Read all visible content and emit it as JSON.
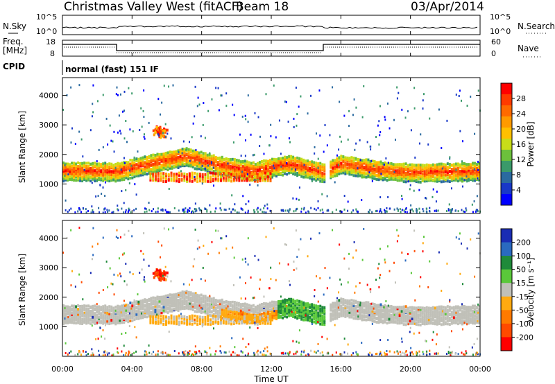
{
  "header": {
    "title": "Christmas Valley West (fitACF)",
    "beam": "Beam 18",
    "date": "03/Apr/2014"
  },
  "panels": {
    "nsky": {
      "left_label": "N.Sky",
      "right_label": "N.Search",
      "ticks_left": [
        "10^5",
        "10^0"
      ],
      "ticks_right": [
        "10^5",
        "10^0"
      ]
    },
    "freq": {
      "left_label_1": "Freq.",
      "left_label_2": "[MHz]",
      "right_label": "Nave",
      "ticks_left": [
        "18",
        "8"
      ],
      "ticks_right": [
        "60",
        "0"
      ]
    },
    "cpid": {
      "label": "CPID",
      "text": "normal (fast) 151 IF"
    }
  },
  "colorbars": {
    "power": {
      "label": "Power [dB]",
      "ticks": [
        "28",
        "24",
        "20",
        "16",
        "12",
        "8",
        "4"
      ],
      "colors": [
        "#ff0000",
        "#ff3a00",
        "#ff6a00",
        "#ff9a00",
        "#ffc000",
        "#c8dc18",
        "#6cc03c",
        "#3a9a6a",
        "#2a6aa0",
        "#1838c8",
        "#0000ff"
      ]
    },
    "velocity": {
      "label": "Velocity [m s⁻¹]",
      "ticks": [
        "200",
        "100",
        "50",
        "15",
        "-15",
        "-50",
        "-100",
        "-200"
      ],
      "colors": [
        "#1a2db4",
        "#2a6ac0",
        "#1f8a3a",
        "#5ac83a",
        "#c0c0b8",
        "#ffaa10",
        "#ff7a00",
        "#ff4a00",
        "#ff0000"
      ]
    }
  },
  "chart_data": [
    {
      "type": "heatmap",
      "name": "power",
      "ylabel": "Slant Range [km]",
      "ylim": [
        0,
        4600
      ],
      "yticks": [
        1000,
        2000,
        3000,
        4000
      ],
      "xlim": [
        "00:00",
        "24:00"
      ],
      "colorbar_label": "Power [dB]",
      "trace_ranges": [
        {
          "time_h": 0,
          "range_km": 1450
        },
        {
          "time_h": 2,
          "range_km": 1450
        },
        {
          "time_h": 3,
          "range_km": 1420
        },
        {
          "time_h": 5,
          "range_km": 1700
        },
        {
          "time_h": 7,
          "range_km": 1950
        },
        {
          "time_h": 9,
          "range_km": 1650
        },
        {
          "time_h": 11,
          "range_km": 1450
        },
        {
          "time_h": 13,
          "range_km": 1700
        },
        {
          "time_h": 15,
          "range_km": 1400
        },
        {
          "time_h": 16,
          "range_km": 1700
        },
        {
          "time_h": 18,
          "range_km": 1500
        },
        {
          "time_h": 20,
          "range_km": 1400
        },
        {
          "time_h": 24,
          "range_km": 1450
        }
      ]
    },
    {
      "type": "heatmap",
      "name": "velocity",
      "ylabel": "Slant Range [km]",
      "xlabel": "Time UT",
      "ylim": [
        0,
        4600
      ],
      "yticks": [
        1000,
        2000,
        3000,
        4000
      ],
      "xticks": [
        "00:00",
        "04:00",
        "08:00",
        "12:00",
        "16:00",
        "20:00",
        "00:00"
      ],
      "colorbar_label": "Velocity [m s⁻¹]"
    }
  ],
  "axes": {
    "ylabel": "Slant Range [km]",
    "xlabel": "Time UT",
    "yticks": [
      "1000",
      "2000",
      "3000",
      "4000"
    ],
    "xticks": [
      "00:00",
      "04:00",
      "08:00",
      "12:00",
      "16:00",
      "20:00",
      "00:00"
    ]
  }
}
